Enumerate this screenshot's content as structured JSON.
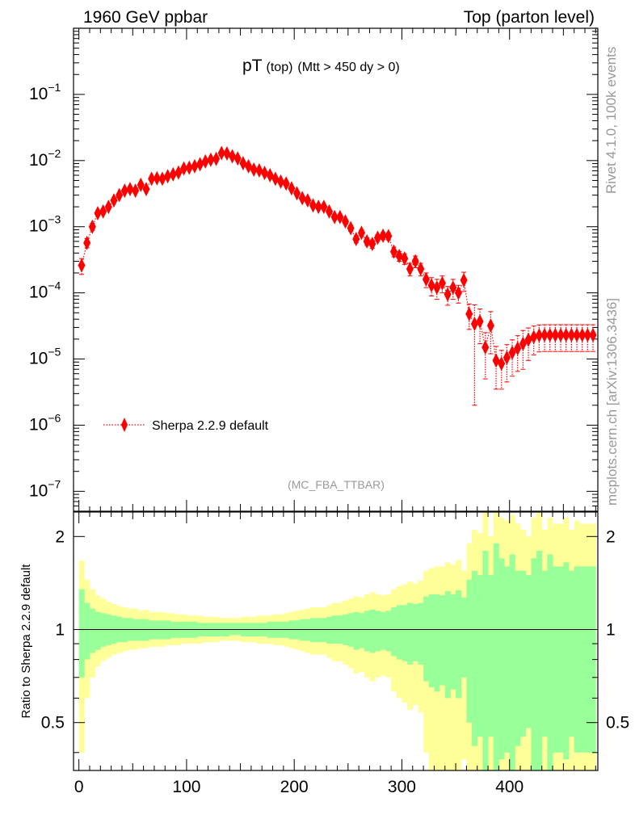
{
  "header": {
    "left": "1960 GeV ppbar",
    "right": "Top (parton level)"
  },
  "side_labels": {
    "rivet": "Rivet 4.1.0,  100k events",
    "mcplots": "mcplots.cern.ch [arXiv:1306.3436]"
  },
  "chart_data": [
    {
      "type": "scatter",
      "panel": "main",
      "title": {
        "main": "pT",
        "sub": "(top)",
        "cut": "(Mtt > 450 dy > 0)"
      },
      "analysis_label": "(MC_FBA_TTBAR)",
      "xlabel": "",
      "ylabel": "",
      "yscale": "log",
      "xlim": [
        -5,
        482
      ],
      "ylim": [
        5e-08,
        1.0
      ],
      "y_ticks": [
        {
          "exp": "-1",
          "value": 0.1
        },
        {
          "exp": "-2",
          "value": 0.01
        },
        {
          "exp": "-3",
          "value": 0.001
        },
        {
          "exp": "-4",
          "value": 0.0001
        },
        {
          "exp": "-5",
          "value": 1e-05
        },
        {
          "exp": "-6",
          "value": 1e-06
        },
        {
          "exp": "-7",
          "value": 1e-07
        }
      ],
      "legend": {
        "location": "bottom-left",
        "entries": [
          "Sherpa 2.2.9 default"
        ]
      },
      "series": [
        {
          "name": "Sherpa 2.2.9 default",
          "color": "#ff0000",
          "marker": "diamond",
          "line": "dotted",
          "x": [
            2.5,
            7.5,
            12.5,
            17.5,
            22.5,
            27.5,
            32.5,
            37.5,
            42.5,
            47.5,
            52.5,
            57.5,
            62.5,
            67.5,
            72.5,
            77.5,
            82.5,
            87.5,
            92.5,
            97.5,
            102.5,
            107.5,
            112.5,
            117.5,
            122.5,
            127.5,
            132.5,
            137.5,
            142.5,
            147.5,
            152.5,
            157.5,
            162.5,
            167.5,
            172.5,
            177.5,
            182.5,
            187.5,
            192.5,
            197.5,
            202.5,
            207.5,
            212.5,
            217.5,
            222.5,
            227.5,
            232.5,
            237.5,
            242.5,
            247.5,
            252.5,
            257.5,
            262.5,
            267.5,
            272.5,
            277.5,
            282.5,
            287.5,
            292.5,
            297.5,
            302.5,
            307.5,
            312.5,
            317.5,
            322.5,
            327.5,
            332.5,
            337.5,
            342.5,
            347.5,
            352.5,
            357.5,
            362.5,
            367.5,
            372.5,
            377.5,
            382.5,
            387.5,
            392.5,
            397.5,
            402.5,
            407.5,
            412.5,
            417.5,
            422.5,
            427.5,
            432.5,
            437.5,
            442.5,
            447.5,
            452.5,
            457.5,
            462.5,
            467.5,
            472.5,
            477.5
          ],
          "y": [
            0.00026,
            0.00057,
            0.001,
            0.0016,
            0.0017,
            0.002,
            0.0025,
            0.003,
            0.0035,
            0.0037,
            0.0035,
            0.0043,
            0.0037,
            0.0053,
            0.0054,
            0.0053,
            0.0058,
            0.0062,
            0.0066,
            0.0076,
            0.0078,
            0.0082,
            0.0088,
            0.0097,
            0.0103,
            0.0106,
            0.013,
            0.0128,
            0.0116,
            0.0108,
            0.0091,
            0.0082,
            0.0073,
            0.0071,
            0.0065,
            0.006,
            0.0053,
            0.0048,
            0.0045,
            0.0038,
            0.0032,
            0.0027,
            0.0025,
            0.0021,
            0.002,
            0.002,
            0.0017,
            0.0014,
            0.0014,
            0.0012,
            0.00095,
            0.00065,
            0.00081,
            0.0006,
            0.00055,
            0.00068,
            0.00073,
            0.00072,
            0.00042,
            0.00036,
            0.00033,
            0.00023,
            0.0003,
            0.00023,
            0.00016,
            0.00013,
            0.00012,
            0.00014,
            9.5e-05,
            0.00012,
            0.0001,
            0.000155,
            4.8e-05,
            3.4e-05,
            3.7e-05,
            1.5e-05,
            3.2e-05,
            9.5e-06,
            8.5e-06,
            1.05e-05,
            1.25e-05,
            1.45e-05,
            1.7e-05,
            1.95e-05,
            2.15e-05,
            2.28e-05,
            2.3e-05,
            2.3e-05,
            2.3e-05,
            2.3e-05,
            2.3e-05,
            2.3e-05,
            2.3e-05,
            2.3e-05,
            2.3e-05,
            2.3e-05
          ],
          "yerr_lo": [
            7e-05,
            9e-05,
            0.00012,
            0.00014,
            0.00014,
            0.00015,
            0.00016,
            0.00018,
            0.00019,
            0.00019,
            0.00019,
            0.0002,
            0.00019,
            0.00023,
            0.00023,
            0.00023,
            0.00024,
            0.00025,
            0.00026,
            0.00028,
            0.00028,
            0.00029,
            0.0003,
            0.00031,
            0.00032,
            0.00033,
            0.00036,
            0.00036,
            0.00034,
            0.00033,
            0.0003,
            0.00029,
            0.00027,
            0.00027,
            0.00026,
            0.00025,
            0.00023,
            0.00022,
            0.00021,
            0.00019,
            0.00018,
            0.00016,
            0.00016,
            0.00014,
            0.00014,
            0.00014,
            0.00013,
            0.00012,
            0.00012,
            0.00011,
            0.0001,
            8e-05,
            9e-05,
            8e-05,
            8e-05,
            8e-05,
            9e-05,
            9e-05,
            7e-05,
            6e-05,
            6e-05,
            5e-05,
            6e-05,
            5e-05,
            4e-05,
            4e-05,
            4e-05,
            4e-05,
            3e-05,
            4e-05,
            3e-05,
            5e-05,
            2e-05,
            3.2e-05,
            2e-05,
            1e-05,
            2e-05,
            6e-06,
            5e-06,
            6e-06,
            7e-06,
            8e-06,
            1e-05,
            1e-05,
            1e-05,
            1e-05,
            1e-05,
            1e-05,
            1e-05,
            1e-05,
            1e-05,
            1e-05,
            1e-05,
            1e-05,
            1e-05,
            1e-05
          ],
          "yerr_hi": [
            7e-05,
            9e-05,
            0.00012,
            0.00014,
            0.00014,
            0.00015,
            0.00016,
            0.00018,
            0.00019,
            0.00019,
            0.00019,
            0.0002,
            0.00019,
            0.00023,
            0.00023,
            0.00023,
            0.00024,
            0.00025,
            0.00026,
            0.00028,
            0.00028,
            0.00029,
            0.0003,
            0.00031,
            0.00032,
            0.00033,
            0.00036,
            0.00036,
            0.00034,
            0.00033,
            0.0003,
            0.00029,
            0.00027,
            0.00027,
            0.00026,
            0.00025,
            0.00023,
            0.00022,
            0.00021,
            0.00019,
            0.00018,
            0.00016,
            0.00016,
            0.00014,
            0.00014,
            0.00014,
            0.00013,
            0.00012,
            0.00012,
            0.00011,
            0.0001,
            8e-05,
            9e-05,
            8e-05,
            8e-05,
            8e-05,
            9e-05,
            9e-05,
            7e-05,
            6e-05,
            6e-05,
            5e-05,
            6e-05,
            5e-05,
            4e-05,
            4e-05,
            4e-05,
            4e-05,
            3e-05,
            4e-05,
            3e-05,
            5e-05,
            2e-05,
            3.2e-05,
            2e-05,
            1e-05,
            2e-05,
            6e-06,
            5e-06,
            6e-06,
            7e-06,
            8e-06,
            1e-05,
            1e-05,
            1e-05,
            1e-05,
            1e-05,
            1e-05,
            1e-05,
            1e-05,
            1e-05,
            1e-05,
            1e-05,
            1e-05,
            1e-05,
            1e-05
          ]
        }
      ]
    },
    {
      "type": "area",
      "panel": "ratio",
      "ylabel": "Ratio to Sherpa 2.2.9 default",
      "yscale": "log",
      "xlim": [
        -5,
        482
      ],
      "ylim": [
        0.35,
        2.4
      ],
      "x_ticks": [
        "0",
        "100",
        "200",
        "300",
        "400"
      ],
      "x_tick_values": [
        0,
        100,
        200,
        300,
        400
      ],
      "y_ticks": [
        "0.5",
        "1",
        "2"
      ],
      "y_tick_values": [
        0.5,
        1,
        2
      ],
      "reference_line": 1,
      "bin_width": 5,
      "bin_x": [
        2.5,
        7.5,
        12.5,
        17.5,
        22.5,
        27.5,
        32.5,
        37.5,
        42.5,
        47.5,
        52.5,
        57.5,
        62.5,
        67.5,
        72.5,
        77.5,
        82.5,
        87.5,
        92.5,
        97.5,
        102.5,
        107.5,
        112.5,
        117.5,
        122.5,
        127.5,
        132.5,
        137.5,
        142.5,
        147.5,
        152.5,
        157.5,
        162.5,
        167.5,
        172.5,
        177.5,
        182.5,
        187.5,
        192.5,
        197.5,
        202.5,
        207.5,
        212.5,
        217.5,
        222.5,
        227.5,
        232.5,
        237.5,
        242.5,
        247.5,
        252.5,
        257.5,
        262.5,
        267.5,
        272.5,
        277.5,
        282.5,
        287.5,
        292.5,
        297.5,
        302.5,
        307.5,
        312.5,
        317.5,
        322.5,
        327.5,
        332.5,
        337.5,
        342.5,
        347.5,
        352.5,
        357.5,
        362.5,
        367.5,
        372.5,
        377.5,
        382.5,
        387.5,
        392.5,
        397.5,
        402.5,
        407.5,
        412.5,
        417.5,
        422.5,
        427.5,
        432.5,
        437.5,
        442.5,
        447.5,
        452.5,
        457.5,
        462.5,
        467.5,
        472.5,
        477.5
      ],
      "bands": [
        {
          "name": "2-sigma",
          "color": "#ffff99",
          "upper": [
            1.67,
            1.45,
            1.35,
            1.29,
            1.26,
            1.23,
            1.21,
            1.19,
            1.18,
            1.17,
            1.17,
            1.15,
            1.16,
            1.14,
            1.14,
            1.14,
            1.13,
            1.13,
            1.12,
            1.12,
            1.11,
            1.11,
            1.11,
            1.1,
            1.1,
            1.1,
            1.09,
            1.09,
            1.09,
            1.09,
            1.1,
            1.1,
            1.1,
            1.11,
            1.11,
            1.11,
            1.12,
            1.12,
            1.13,
            1.14,
            1.15,
            1.16,
            1.17,
            1.18,
            1.18,
            1.18,
            1.2,
            1.22,
            1.22,
            1.24,
            1.26,
            1.28,
            1.27,
            1.3,
            1.32,
            1.3,
            1.29,
            1.3,
            1.35,
            1.38,
            1.4,
            1.43,
            1.41,
            1.44,
            1.55,
            1.58,
            1.6,
            1.6,
            1.65,
            1.62,
            1.68,
            1.55,
            1.9,
            2.1,
            2.05,
            2.4,
            2.0,
            2.45,
            2.3,
            2.25,
            2.35,
            2.2,
            2.1,
            2.0,
            2.3,
            2.4,
            2.1,
            2.3,
            2.2,
            2.2,
            2.3,
            2.1,
            2.25,
            2.2,
            2.2,
            2.2
          ],
          "lower": [
            0.4,
            0.6,
            0.7,
            0.76,
            0.79,
            0.81,
            0.83,
            0.84,
            0.85,
            0.86,
            0.86,
            0.87,
            0.87,
            0.88,
            0.88,
            0.88,
            0.89,
            0.89,
            0.89,
            0.9,
            0.9,
            0.9,
            0.9,
            0.91,
            0.91,
            0.91,
            0.92,
            0.92,
            0.92,
            0.92,
            0.91,
            0.91,
            0.91,
            0.9,
            0.9,
            0.9,
            0.89,
            0.89,
            0.88,
            0.87,
            0.86,
            0.85,
            0.84,
            0.83,
            0.83,
            0.83,
            0.81,
            0.79,
            0.79,
            0.77,
            0.75,
            0.72,
            0.73,
            0.7,
            0.68,
            0.7,
            0.71,
            0.7,
            0.63,
            0.6,
            0.58,
            0.55,
            0.57,
            0.54,
            0.4,
            0.35,
            0.3,
            0.35,
            0.3,
            0.33,
            0.3,
            0.38,
            0.3,
            0.3,
            0.3,
            0.3,
            0.3,
            0.3,
            0.3,
            0.3,
            0.3,
            0.3,
            0.3,
            0.3,
            0.3,
            0.3,
            0.3,
            0.3,
            0.3,
            0.3,
            0.3,
            0.3,
            0.3,
            0.3,
            0.3,
            0.3
          ]
        },
        {
          "name": "1-sigma",
          "color": "#99ff99",
          "upper": [
            1.35,
            1.22,
            1.17,
            1.14,
            1.13,
            1.12,
            1.11,
            1.1,
            1.09,
            1.09,
            1.08,
            1.08,
            1.08,
            1.07,
            1.07,
            1.07,
            1.07,
            1.06,
            1.06,
            1.06,
            1.06,
            1.06,
            1.05,
            1.05,
            1.05,
            1.05,
            1.05,
            1.05,
            1.05,
            1.05,
            1.05,
            1.05,
            1.05,
            1.05,
            1.05,
            1.06,
            1.06,
            1.06,
            1.06,
            1.07,
            1.07,
            1.08,
            1.08,
            1.09,
            1.09,
            1.09,
            1.1,
            1.11,
            1.11,
            1.12,
            1.13,
            1.14,
            1.13,
            1.15,
            1.16,
            1.15,
            1.14,
            1.15,
            1.18,
            1.2,
            1.2,
            1.22,
            1.21,
            1.22,
            1.28,
            1.3,
            1.3,
            1.29,
            1.33,
            1.3,
            1.34,
            1.27,
            1.45,
            1.55,
            1.5,
            1.8,
            1.5,
            1.9,
            1.7,
            1.6,
            1.75,
            1.55,
            1.55,
            1.5,
            1.7,
            1.8,
            1.55,
            1.75,
            1.6,
            1.6,
            1.65,
            1.55,
            1.6,
            1.6,
            1.6,
            1.6
          ],
          "lower": [
            0.7,
            0.8,
            0.84,
            0.86,
            0.88,
            0.89,
            0.9,
            0.91,
            0.91,
            0.92,
            0.92,
            0.92,
            0.92,
            0.93,
            0.93,
            0.93,
            0.93,
            0.94,
            0.94,
            0.94,
            0.94,
            0.94,
            0.95,
            0.95,
            0.95,
            0.95,
            0.95,
            0.95,
            0.96,
            0.96,
            0.95,
            0.95,
            0.95,
            0.95,
            0.95,
            0.94,
            0.94,
            0.94,
            0.94,
            0.93,
            0.93,
            0.92,
            0.92,
            0.91,
            0.91,
            0.91,
            0.9,
            0.9,
            0.9,
            0.89,
            0.88,
            0.86,
            0.87,
            0.85,
            0.84,
            0.85,
            0.86,
            0.85,
            0.82,
            0.8,
            0.79,
            0.77,
            0.79,
            0.77,
            0.68,
            0.65,
            0.63,
            0.66,
            0.6,
            0.64,
            0.6,
            0.7,
            0.5,
            0.42,
            0.45,
            0.3,
            0.45,
            0.3,
            0.38,
            0.4,
            0.35,
            0.42,
            0.45,
            0.48,
            0.35,
            0.3,
            0.45,
            0.32,
            0.4,
            0.4,
            0.38,
            0.45,
            0.4,
            0.4,
            0.4,
            0.4
          ]
        }
      ]
    }
  ]
}
